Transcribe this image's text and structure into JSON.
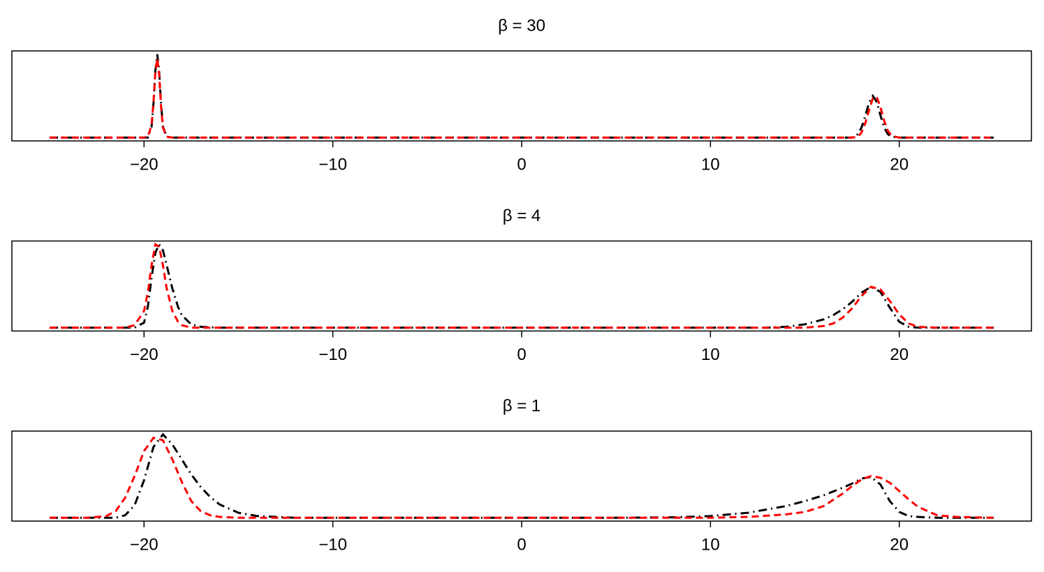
{
  "chart_data": [
    {
      "type": "line",
      "title": "β = 30",
      "x": [
        -25,
        -20,
        -19.8,
        -19.6,
        -19.5,
        -19.4,
        -19.3,
        -19.2,
        -19.1,
        -19,
        -18.8,
        -18.5,
        -15,
        -10,
        -5,
        0,
        5,
        10,
        15,
        17.5,
        17.8,
        18,
        18.2,
        18.4,
        18.6,
        18.8,
        19,
        19.2,
        19.4,
        19.6,
        20,
        25
      ],
      "series": [
        {
          "color": "#000000",
          "dash": "dashdot",
          "values": [
            0,
            0,
            0,
            0.13,
            0.41,
            0.8,
            1,
            0.8,
            0.41,
            0.13,
            0.01,
            0,
            0,
            0,
            0,
            0,
            0,
            0,
            0,
            0,
            0.04,
            0.12,
            0.26,
            0.42,
            0.5,
            0.43,
            0.27,
            0.12,
            0.04,
            0.01,
            0,
            0
          ]
        },
        {
          "color": "#ff0000",
          "dash": "dashed",
          "values": [
            0,
            0,
            0.01,
            0.15,
            0.42,
            0.78,
            0.95,
            0.76,
            0.38,
            0.12,
            0.01,
            0,
            0,
            0,
            0,
            0,
            0,
            0,
            0,
            0,
            0.01,
            0.06,
            0.17,
            0.33,
            0.47,
            0.49,
            0.37,
            0.2,
            0.08,
            0.02,
            0,
            0
          ]
        }
      ],
      "xlim": [
        -27,
        27
      ],
      "ylim": [
        -0.04,
        1.04
      ],
      "xticks": [
        {
          "value": -20,
          "label": "−20"
        },
        {
          "value": -10,
          "label": "−10"
        },
        0,
        10,
        20
      ]
    },
    {
      "type": "line",
      "title": "β = 4",
      "x": [
        -25,
        -21,
        -20.5,
        -20,
        -19.8,
        -19.6,
        -19.4,
        -19.2,
        -19,
        -18.8,
        -18.5,
        -18.2,
        -18,
        -17.5,
        -17,
        -16,
        -10,
        0,
        10,
        13,
        14,
        15,
        16,
        16.5,
        17,
        17.5,
        18,
        18.5,
        19,
        19.5,
        20,
        20.5,
        21,
        22,
        25
      ],
      "series": [
        {
          "color": "#000000",
          "dash": "dashdot",
          "values": [
            0,
            0,
            0,
            0.06,
            0.25,
            0.6,
            0.9,
            1,
            0.93,
            0.75,
            0.47,
            0.25,
            0.15,
            0.04,
            0.01,
            0,
            0,
            0,
            0,
            0,
            0.01,
            0.04,
            0.1,
            0.15,
            0.22,
            0.31,
            0.42,
            0.49,
            0.43,
            0.24,
            0.07,
            0.01,
            0,
            0,
            0
          ]
        },
        {
          "color": "#ff0000",
          "dash": "dashed",
          "values": [
            0,
            0,
            0.03,
            0.2,
            0.42,
            0.75,
            1,
            0.97,
            0.75,
            0.47,
            0.2,
            0.07,
            0.03,
            0,
            0,
            0,
            0,
            0,
            0,
            0,
            0,
            0,
            0.02,
            0.05,
            0.12,
            0.23,
            0.38,
            0.49,
            0.46,
            0.32,
            0.16,
            0.05,
            0.01,
            0,
            0
          ]
        }
      ],
      "xlim": [
        -27,
        27
      ],
      "ylim": [
        -0.04,
        1.04
      ],
      "xticks": [
        {
          "value": -20,
          "label": "−20"
        },
        {
          "value": -10,
          "label": "−10"
        },
        0,
        10,
        20
      ]
    },
    {
      "type": "line",
      "title": "β = 1",
      "x": [
        -25,
        -23,
        -22,
        -21.5,
        -21,
        -20.5,
        -20,
        -19.5,
        -19,
        -18.5,
        -18,
        -17.5,
        -17,
        -16.5,
        -16,
        -15,
        -14,
        -12,
        -10,
        0,
        5,
        8,
        10,
        12,
        14,
        15,
        16,
        17,
        17.5,
        18,
        18.5,
        19,
        19.5,
        20,
        20.5,
        21,
        22,
        23,
        25
      ],
      "series": [
        {
          "color": "#000000",
          "dash": "dashdot",
          "values": [
            0,
            0,
            0,
            0,
            0.03,
            0.15,
            0.45,
            0.85,
            1,
            0.88,
            0.7,
            0.52,
            0.37,
            0.25,
            0.16,
            0.06,
            0.02,
            0,
            0,
            0,
            0,
            0.005,
            0.02,
            0.06,
            0.14,
            0.2,
            0.27,
            0.36,
            0.41,
            0.47,
            0.49,
            0.4,
            0.2,
            0.07,
            0.02,
            0.01,
            0,
            0,
            0
          ]
        },
        {
          "color": "#ff0000",
          "dash": "dashed",
          "values": [
            0,
            0,
            0.02,
            0.08,
            0.24,
            0.5,
            0.8,
            0.96,
            0.93,
            0.7,
            0.43,
            0.2,
            0.08,
            0.03,
            0.01,
            0,
            0,
            0,
            0,
            0,
            0,
            0,
            0,
            0.01,
            0.04,
            0.07,
            0.14,
            0.29,
            0.38,
            0.46,
            0.5,
            0.48,
            0.42,
            0.32,
            0.22,
            0.13,
            0.03,
            0.01,
            0
          ]
        }
      ],
      "xlim": [
        -27,
        27
      ],
      "ylim": [
        -0.04,
        1.04
      ],
      "xticks": [
        {
          "value": -20,
          "label": "−20"
        },
        {
          "value": -10,
          "label": "−10"
        },
        0,
        10,
        20
      ]
    }
  ]
}
